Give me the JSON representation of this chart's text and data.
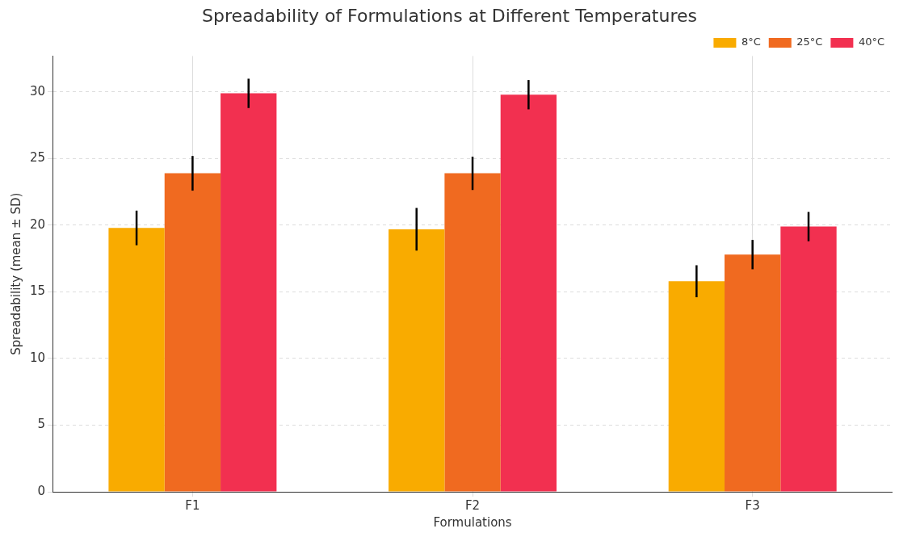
{
  "chart_data": {
    "type": "bar",
    "title": "Spreadability of Formulations at Different Temperatures",
    "xlabel": "Formulations",
    "ylabel": "Spreadability (mean ± SD)",
    "categories": [
      "F1",
      "F2",
      "F3"
    ],
    "series": [
      {
        "name": "8°C",
        "color": "#f9ab00",
        "values": [
          19.8,
          19.7,
          15.8
        ],
        "errors": [
          1.3,
          1.6,
          1.2
        ]
      },
      {
        "name": "25°C",
        "color": "#f06a20",
        "values": [
          23.9,
          23.9,
          17.8
        ],
        "errors": [
          1.3,
          1.25,
          1.1
        ]
      },
      {
        "name": "40°C",
        "color": "#f23050",
        "values": [
          29.9,
          29.8,
          19.9
        ],
        "errors": [
          1.1,
          1.1,
          1.1
        ]
      }
    ],
    "ylim": [
      0,
      32.7
    ],
    "yticks": [
      0,
      5,
      10,
      15,
      20,
      25,
      30
    ],
    "grid": true,
    "legend": "top right"
  }
}
